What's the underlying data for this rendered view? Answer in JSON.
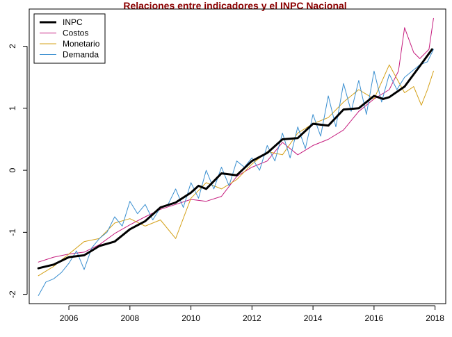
{
  "chart_data": {
    "type": "line",
    "title": "Relaciones entre indicadores y el INPC Nacional",
    "xlabel": "",
    "ylabel": "",
    "xlim": [
      2004.7,
      2018.35
    ],
    "ylim": [
      -2.15,
      2.6
    ],
    "x_ticks": [
      2006,
      2008,
      2010,
      2012,
      2014,
      2016,
      2018
    ],
    "x_tick_labels": [
      "2006",
      "2008",
      "2010",
      "2012",
      "2014",
      "2016",
      "2018"
    ],
    "y_ticks": [
      -2,
      -1,
      0,
      1,
      2
    ],
    "y_tick_labels": [
      "-2",
      "-1",
      "0",
      "1",
      "2"
    ],
    "grid": false,
    "legend_position": "top-left",
    "colors": {
      "title": "#8b0000",
      "axis": "#000000",
      "INPC": "#000000",
      "Costos": "#c51b7d",
      "Monetario": "#d4a017",
      "Demanda": "#3a8fd0"
    },
    "series": [
      {
        "name": "INPC",
        "color": "#000000",
        "line_width": 3,
        "x": [
          2005.0,
          2005.5,
          2006.0,
          2006.5,
          2007.0,
          2007.5,
          2008.0,
          2008.5,
          2009.0,
          2009.5,
          2010.0,
          2010.25,
          2010.5,
          2011.0,
          2011.5,
          2012.0,
          2012.5,
          2013.0,
          2013.5,
          2014.0,
          2014.5,
          2015.0,
          2015.5,
          2016.0,
          2016.3,
          2016.5,
          2017.0,
          2017.5,
          2017.9
        ],
        "values": [
          -1.58,
          -1.52,
          -1.4,
          -1.37,
          -1.22,
          -1.15,
          -0.95,
          -0.82,
          -0.6,
          -0.52,
          -0.36,
          -0.25,
          -0.3,
          -0.05,
          -0.08,
          0.15,
          0.28,
          0.5,
          0.52,
          0.75,
          0.72,
          0.98,
          1.0,
          1.2,
          1.15,
          1.18,
          1.35,
          1.68,
          1.95
        ]
      },
      {
        "name": "Costos",
        "color": "#c51b7d",
        "line_width": 1,
        "x": [
          2005.0,
          2005.5,
          2006.0,
          2006.5,
          2007.0,
          2007.5,
          2008.0,
          2008.5,
          2009.0,
          2009.5,
          2010.0,
          2010.5,
          2011.0,
          2011.5,
          2012.0,
          2012.5,
          2013.0,
          2013.5,
          2014.0,
          2014.5,
          2015.0,
          2015.5,
          2016.0,
          2016.5,
          2016.8,
          2017.0,
          2017.3,
          2017.5,
          2017.8,
          2017.95
        ],
        "values": [
          -1.48,
          -1.4,
          -1.35,
          -1.32,
          -1.2,
          -1.02,
          -0.88,
          -0.75,
          -0.63,
          -0.55,
          -0.47,
          -0.5,
          -0.42,
          -0.1,
          0.05,
          0.15,
          0.45,
          0.25,
          0.4,
          0.5,
          0.65,
          0.95,
          1.15,
          1.3,
          1.6,
          2.3,
          1.9,
          1.8,
          1.95,
          2.45
        ]
      },
      {
        "name": "Monetario",
        "color": "#d4a017",
        "line_width": 1,
        "x": [
          2005.0,
          2005.5,
          2006.0,
          2006.5,
          2007.0,
          2007.5,
          2008.0,
          2008.5,
          2009.0,
          2009.5,
          2010.0,
          2010.5,
          2011.0,
          2011.5,
          2012.0,
          2012.5,
          2013.0,
          2013.5,
          2014.0,
          2014.5,
          2015.0,
          2015.5,
          2016.0,
          2016.5,
          2017.0,
          2017.3,
          2017.55,
          2017.75,
          2017.95
        ],
        "values": [
          -1.7,
          -1.55,
          -1.35,
          -1.15,
          -1.1,
          -0.85,
          -0.78,
          -0.9,
          -0.8,
          -1.1,
          -0.45,
          -0.2,
          -0.3,
          -0.15,
          0.1,
          0.3,
          0.25,
          0.6,
          0.75,
          0.85,
          1.1,
          1.3,
          1.15,
          1.7,
          1.25,
          1.35,
          1.05,
          1.3,
          1.6
        ]
      },
      {
        "name": "Demanda",
        "color": "#3a8fd0",
        "line_width": 1,
        "x": [
          2005.0,
          2005.25,
          2005.5,
          2005.75,
          2006.0,
          2006.25,
          2006.5,
          2006.75,
          2007.0,
          2007.25,
          2007.5,
          2007.75,
          2008.0,
          2008.25,
          2008.5,
          2008.75,
          2009.0,
          2009.25,
          2009.5,
          2009.75,
          2010.0,
          2010.25,
          2010.5,
          2010.75,
          2011.0,
          2011.25,
          2011.5,
          2011.75,
          2012.0,
          2012.25,
          2012.5,
          2012.75,
          2013.0,
          2013.25,
          2013.5,
          2013.75,
          2014.0,
          2014.25,
          2014.5,
          2014.75,
          2015.0,
          2015.25,
          2015.5,
          2015.75,
          2016.0,
          2016.25,
          2016.5,
          2016.75,
          2017.0,
          2017.25,
          2017.5,
          2017.75,
          2017.95
        ],
        "values": [
          -2.02,
          -1.8,
          -1.75,
          -1.65,
          -1.5,
          -1.3,
          -1.6,
          -1.25,
          -1.1,
          -1.0,
          -0.75,
          -0.9,
          -0.5,
          -0.7,
          -0.55,
          -0.8,
          -0.6,
          -0.55,
          -0.3,
          -0.6,
          -0.2,
          -0.45,
          0.0,
          -0.3,
          0.05,
          -0.25,
          0.15,
          0.05,
          0.2,
          0.0,
          0.4,
          0.15,
          0.6,
          0.2,
          0.7,
          0.35,
          0.9,
          0.55,
          1.2,
          0.7,
          1.4,
          0.95,
          1.45,
          0.9,
          1.6,
          1.1,
          1.55,
          1.3,
          1.5,
          1.6,
          1.7,
          1.75,
          1.95
        ]
      }
    ]
  }
}
